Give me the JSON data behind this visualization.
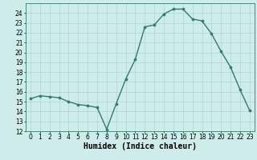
{
  "x": [
    0,
    1,
    2,
    3,
    4,
    5,
    6,
    7,
    8,
    9,
    10,
    11,
    12,
    13,
    14,
    15,
    16,
    17,
    18,
    19,
    20,
    21,
    22,
    23
  ],
  "y": [
    15.3,
    15.6,
    15.5,
    15.4,
    15.0,
    14.7,
    14.6,
    14.4,
    12.2,
    14.8,
    17.3,
    19.3,
    22.6,
    22.8,
    23.9,
    24.4,
    24.4,
    23.4,
    23.2,
    21.9,
    20.1,
    18.5,
    16.2,
    14.1
  ],
  "line_color": "#2e7d6e",
  "marker": "o",
  "markersize": 2.2,
  "linewidth": 1.0,
  "bg_color": "#ceecea",
  "grid_color": "#aacfcc",
  "xlabel": "Humidex (Indice chaleur)",
  "xlabel_fontsize": 7,
  "ylim": [
    12,
    25
  ],
  "xlim": [
    -0.5,
    23.5
  ],
  "yticks": [
    12,
    13,
    14,
    15,
    16,
    17,
    18,
    19,
    20,
    21,
    22,
    23,
    24
  ],
  "xticks": [
    0,
    1,
    2,
    3,
    4,
    5,
    6,
    7,
    8,
    9,
    10,
    11,
    12,
    13,
    14,
    15,
    16,
    17,
    18,
    19,
    20,
    21,
    22,
    23
  ],
  "tick_fontsize": 5.5,
  "spine_color": "#2e7d6e"
}
